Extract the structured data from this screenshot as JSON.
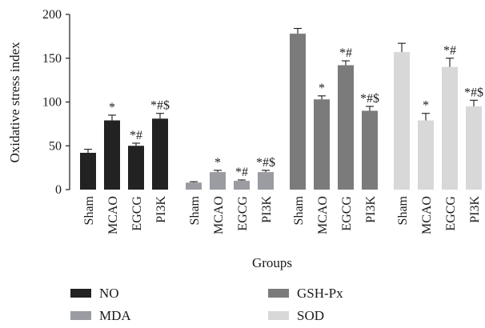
{
  "chart_data": {
    "type": "bar",
    "title": "",
    "xlabel": "Groups",
    "ylabel": "Oxidative stress index",
    "ylim": [
      0,
      200
    ],
    "yticks": [
      0,
      50,
      100,
      150,
      200
    ],
    "categories": [
      "Sham",
      "MCAO",
      "EGCG",
      "PI3K"
    ],
    "grid": false,
    "legend_position": "bottom",
    "series": [
      {
        "name": "NO",
        "color": "#222222",
        "values": [
          42,
          79,
          50,
          81
        ],
        "errors": [
          4,
          6,
          3,
          6
        ],
        "significance": [
          "",
          "*",
          "*#",
          "*#$"
        ]
      },
      {
        "name": "MDA",
        "color": "#9a9ca2",
        "values": [
          8,
          20,
          10,
          20
        ],
        "errors": [
          1,
          2,
          1,
          2
        ],
        "significance": [
          "",
          "*",
          "*#",
          "*#$"
        ]
      },
      {
        "name": "GSH-Px",
        "color": "#7b7b7b",
        "values": [
          178,
          103,
          142,
          90
        ],
        "errors": [
          6,
          4,
          5,
          5
        ],
        "significance": [
          "",
          "*",
          "*#",
          "*#$"
        ]
      },
      {
        "name": "SOD",
        "color": "#d8d8d8",
        "values": [
          157,
          79,
          140,
          95
        ],
        "errors": [
          10,
          8,
          10,
          7
        ],
        "significance": [
          "",
          "*",
          "*#",
          "*#$"
        ]
      }
    ]
  }
}
